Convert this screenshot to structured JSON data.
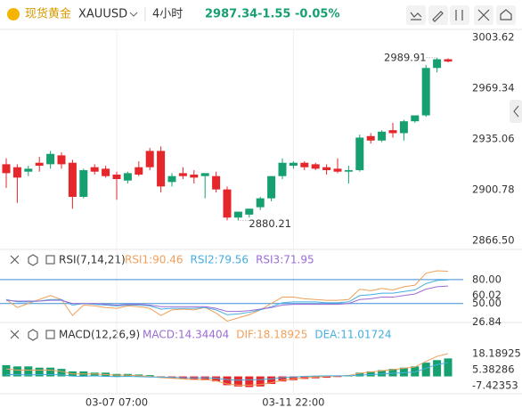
{
  "header": {
    "symbol_cn": "现货黄金",
    "symbol": "XAUUSD",
    "interval": "4小时",
    "price": "2987.34",
    "change": "-1.55",
    "change_pct": "-0.05%"
  },
  "chart_data": [
    {
      "type": "candlestick",
      "up_color": "#17a06f",
      "down_color": "#e5262b",
      "categories": [
        null,
        null,
        null,
        null,
        null,
        null,
        null,
        null,
        null,
        null,
        "03-07 07:00",
        null,
        null,
        null,
        null,
        null,
        null,
        null,
        null,
        null,
        null,
        null,
        null,
        null,
        null,
        null,
        "03-11 22:00",
        null,
        null,
        null,
        null,
        null,
        null,
        null,
        null,
        null,
        null,
        null,
        null,
        null,
        null
      ],
      "open": [
        2918,
        2916,
        2913,
        2919,
        2918,
        2924,
        2919,
        2896,
        2916,
        2915,
        2911,
        2907,
        2916,
        2927,
        2927,
        2906,
        2912,
        2911,
        2910,
        2910,
        2901,
        2882,
        2884,
        2889,
        2895,
        2910,
        2917,
        2919,
        2918,
        2916,
        2915,
        2913,
        2914,
        2937,
        2934,
        2941,
        2939,
        2947,
        2951,
        2983,
        2988.9
      ],
      "high": [
        2922,
        2918,
        2917,
        2923,
        2927,
        2926,
        2921,
        2915,
        2918,
        2917,
        2913,
        2913,
        2920,
        2929,
        2930,
        2912,
        2916,
        2914,
        2912,
        2913,
        2903,
        2886,
        2888,
        2896,
        2910,
        2922,
        2920,
        2920,
        2919,
        2918,
        2922,
        2917,
        2938,
        2939,
        2941,
        2946,
        2948,
        2951,
        2985,
        2989.91,
        2989.5
      ],
      "low": [
        2902,
        2892,
        2910,
        2913,
        2915,
        2915,
        2888,
        2895,
        2911,
        2909,
        2894,
        2905,
        2910,
        2914,
        2899,
        2903,
        2908,
        2905,
        2895,
        2899,
        2880.21,
        2880,
        2882,
        2887,
        2893,
        2908,
        2915,
        2914,
        2914,
        2911,
        2912,
        2905,
        2913,
        2932,
        2933,
        2936,
        2934,
        2946,
        2950,
        2980,
        2986.8
      ],
      "close": [
        2912,
        2909,
        2915,
        2917,
        2925,
        2918,
        2896,
        2914,
        2913,
        2910,
        2908,
        2912,
        2911,
        2916,
        2903,
        2910,
        2910,
        2909,
        2912,
        2901,
        2882,
        2886,
        2888,
        2895,
        2910,
        2919,
        2919,
        2916,
        2915,
        2914,
        2913,
        2914,
        2936,
        2934,
        2940,
        2939,
        2947,
        2951,
        2983,
        2988.9,
        2987.34
      ],
      "high_label": "2989.91",
      "low_label": "2880.21",
      "ylim": [
        2860.51,
        3008.43
      ],
      "yticks": [
        3003.62,
        2969.34,
        2935.06,
        2900.78,
        {
          "value": 2866.5,
          "label": "2866.50"
        }
      ]
    },
    {
      "type": "line",
      "title": "RSI(7,14,21)",
      "series": [
        {
          "name": "RSI1:90.46",
          "color": "#f0a05a",
          "values": [
            55,
            45,
            50,
            55,
            60,
            55,
            35,
            48,
            47,
            45,
            44,
            47,
            46,
            44,
            35,
            42,
            43,
            42,
            45,
            38,
            28,
            32,
            36,
            42,
            50,
            58,
            58,
            56,
            55,
            54,
            54,
            55,
            68,
            66,
            69,
            67,
            71,
            73,
            88,
            91,
            90.46
          ]
        },
        {
          "name": "RSI2:79.56",
          "color": "#46aede",
          "values": [
            55,
            52,
            52,
            53,
            55,
            55,
            48,
            50,
            49,
            48,
            47,
            48,
            48,
            47,
            43,
            44,
            44,
            44,
            45,
            42,
            36,
            37,
            39,
            42,
            46,
            51,
            52,
            52,
            52,
            51,
            51,
            52,
            60,
            61,
            63,
            63,
            65,
            67,
            75,
            79,
            79.56
          ]
        },
        {
          "name": "RSI3:71.95",
          "color": "#9a6cd4",
          "values": [
            54,
            53,
            53,
            53,
            54,
            54,
            50,
            50,
            50,
            49,
            48,
            49,
            49,
            48,
            46,
            46,
            46,
            46,
            46,
            44,
            40,
            40,
            41,
            43,
            45,
            48,
            49,
            49,
            49,
            49,
            49,
            50,
            55,
            56,
            58,
            58,
            60,
            62,
            68,
            71,
            71.95
          ]
        }
      ],
      "levels": [
        80,
        50
      ],
      "level_color": "#3d8fd8",
      "ylim": [
        24,
        110
      ],
      "yticks": [
        {
          "value": 80,
          "label": "80.00"
        },
        60.02,
        {
          "value": 50,
          "label": "50.00"
        },
        26.84
      ]
    },
    {
      "type": "macd",
      "title": "MACD(12,26,9)",
      "series": [
        {
          "name": "MACD:14.34404",
          "color": "#9a6cd4",
          "values": [
            9,
            8,
            8,
            7,
            7,
            6,
            4,
            4,
            3,
            3,
            2,
            2,
            1.5,
            1,
            -1,
            -1.5,
            -2,
            -2.5,
            -3,
            -4,
            -7,
            -8,
            -8.5,
            -8,
            -6,
            -4,
            -3,
            -2,
            -1.5,
            -1,
            -0.5,
            0.5,
            3,
            4,
            5,
            6,
            7,
            8,
            11,
            13,
            14.34404
          ]
        },
        {
          "name": "DIF:18.18925",
          "color": "#f0a05a",
          "values": [
            6,
            5,
            5,
            5,
            5,
            4,
            2,
            2,
            2,
            1.5,
            1,
            1,
            0.5,
            0,
            -1,
            -1.5,
            -2,
            -2.5,
            -2.5,
            -3.5,
            -6,
            -7,
            -7,
            -6.5,
            -5,
            -3,
            -2,
            -1,
            -0.5,
            0,
            0.3,
            0.8,
            2.5,
            3.5,
            4.5,
            5.5,
            6.5,
            7.5,
            12,
            16,
            18.18925
          ]
        },
        {
          "name": "DEA:11.01724",
          "color": "#46aede",
          "values": [
            1.5,
            1.5,
            1.2,
            1.5,
            1.5,
            1.2,
            0.2,
            0,
            0.5,
            0,
            -0.2,
            0,
            -0.2,
            -0.5,
            -0.5,
            -0.8,
            -1,
            -1.2,
            -1,
            -1.5,
            -2.5,
            -3,
            -2.7,
            -2.5,
            -2,
            -1,
            -0.5,
            0,
            0.3,
            0.5,
            0.5,
            0.5,
            1,
            1.5,
            2,
            2.5,
            3,
            3.5,
            6.5,
            9.5,
            11.01724
          ]
        }
      ],
      "ylim": [
        -12.4,
        39.5
      ],
      "yticks": [
        18.18925,
        5.38286,
        -7.42353
      ]
    }
  ]
}
